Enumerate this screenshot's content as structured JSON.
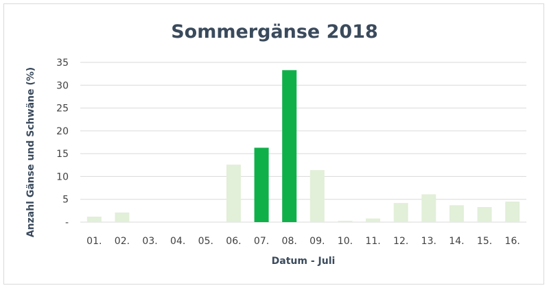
{
  "chart_data": {
    "type": "bar",
    "title": "Sommergänse 2018",
    "xlabel": "Datum - Juli",
    "ylabel": "Anzahl Gänse und Schwäne (%)",
    "categories": [
      "01.",
      "02.",
      "03.",
      "04.",
      "05.",
      "06.",
      "07.",
      "08.",
      "09.",
      "10.",
      "11.",
      "12.",
      "13.",
      "14.",
      "15.",
      "16."
    ],
    "values": [
      1.2,
      2.1,
      0,
      0,
      0,
      12.6,
      16.3,
      33.3,
      11.4,
      0.3,
      0.8,
      4.2,
      6.1,
      3.7,
      3.3,
      4.5
    ],
    "highlighted": [
      "07.",
      "08."
    ],
    "ylim": [
      0,
      35
    ],
    "yticks": [
      "-",
      "5",
      "10",
      "15",
      "20",
      "25",
      "30",
      "35"
    ],
    "grid": true,
    "colors": {
      "bar": "#e2efd9",
      "highlight": "#0fb04a",
      "grid": "#d9d9d9",
      "title": "#3a4a5c"
    }
  }
}
